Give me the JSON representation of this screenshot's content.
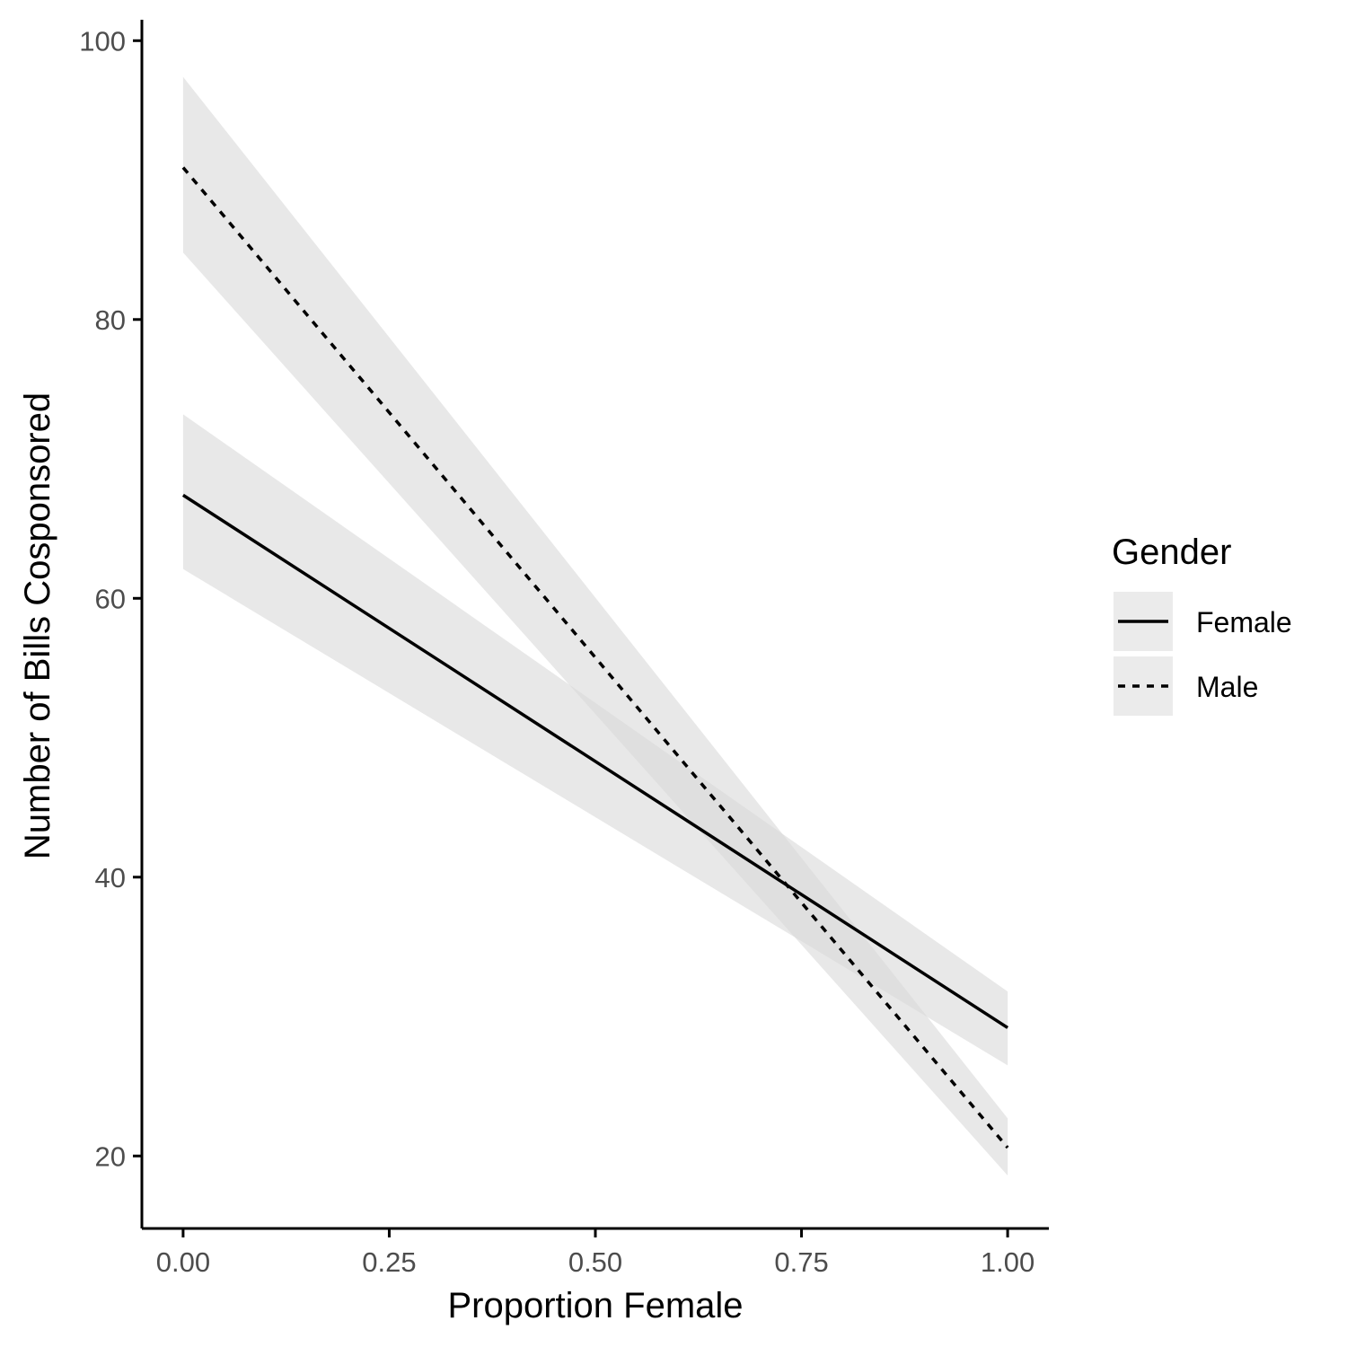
{
  "chart_data": {
    "type": "line",
    "title": "",
    "xlabel": "Proportion Female",
    "ylabel": "Number of Bills Cosponsored",
    "xlim": [
      -0.05,
      1.05
    ],
    "ylim": [
      14.8,
      101.5
    ],
    "x_ticks": [
      0.0,
      0.25,
      0.5,
      0.75,
      1.0
    ],
    "x_tick_labels": [
      "0.00",
      "0.25",
      "0.50",
      "0.75",
      "1.00"
    ],
    "y_ticks": [
      20,
      40,
      60,
      80,
      100
    ],
    "y_tick_labels": [
      "20",
      "40",
      "60",
      "80",
      "100"
    ],
    "grid": false,
    "legend": {
      "title": "Gender",
      "placement": "right"
    },
    "series": [
      {
        "name": "Female",
        "linestyle": "solid",
        "x": [
          0.0,
          1.0
        ],
        "fit": [
          67.4,
          29.2
        ],
        "ci_lower": [
          62.1,
          26.5
        ],
        "ci_upper": [
          73.2,
          31.8
        ]
      },
      {
        "name": "Male",
        "linestyle": "dashed",
        "x": [
          0.0,
          1.0
        ],
        "fit": [
          90.9,
          20.6
        ],
        "ci_lower": [
          84.8,
          18.6
        ],
        "ci_upper": [
          97.4,
          22.7
        ]
      }
    ],
    "colors": {
      "line": "#000000",
      "ribbon": "#d9d9d9",
      "legend_key_bg": "#ebebeb",
      "axis": "#000000",
      "tick_text": "#4d4d4d"
    }
  }
}
